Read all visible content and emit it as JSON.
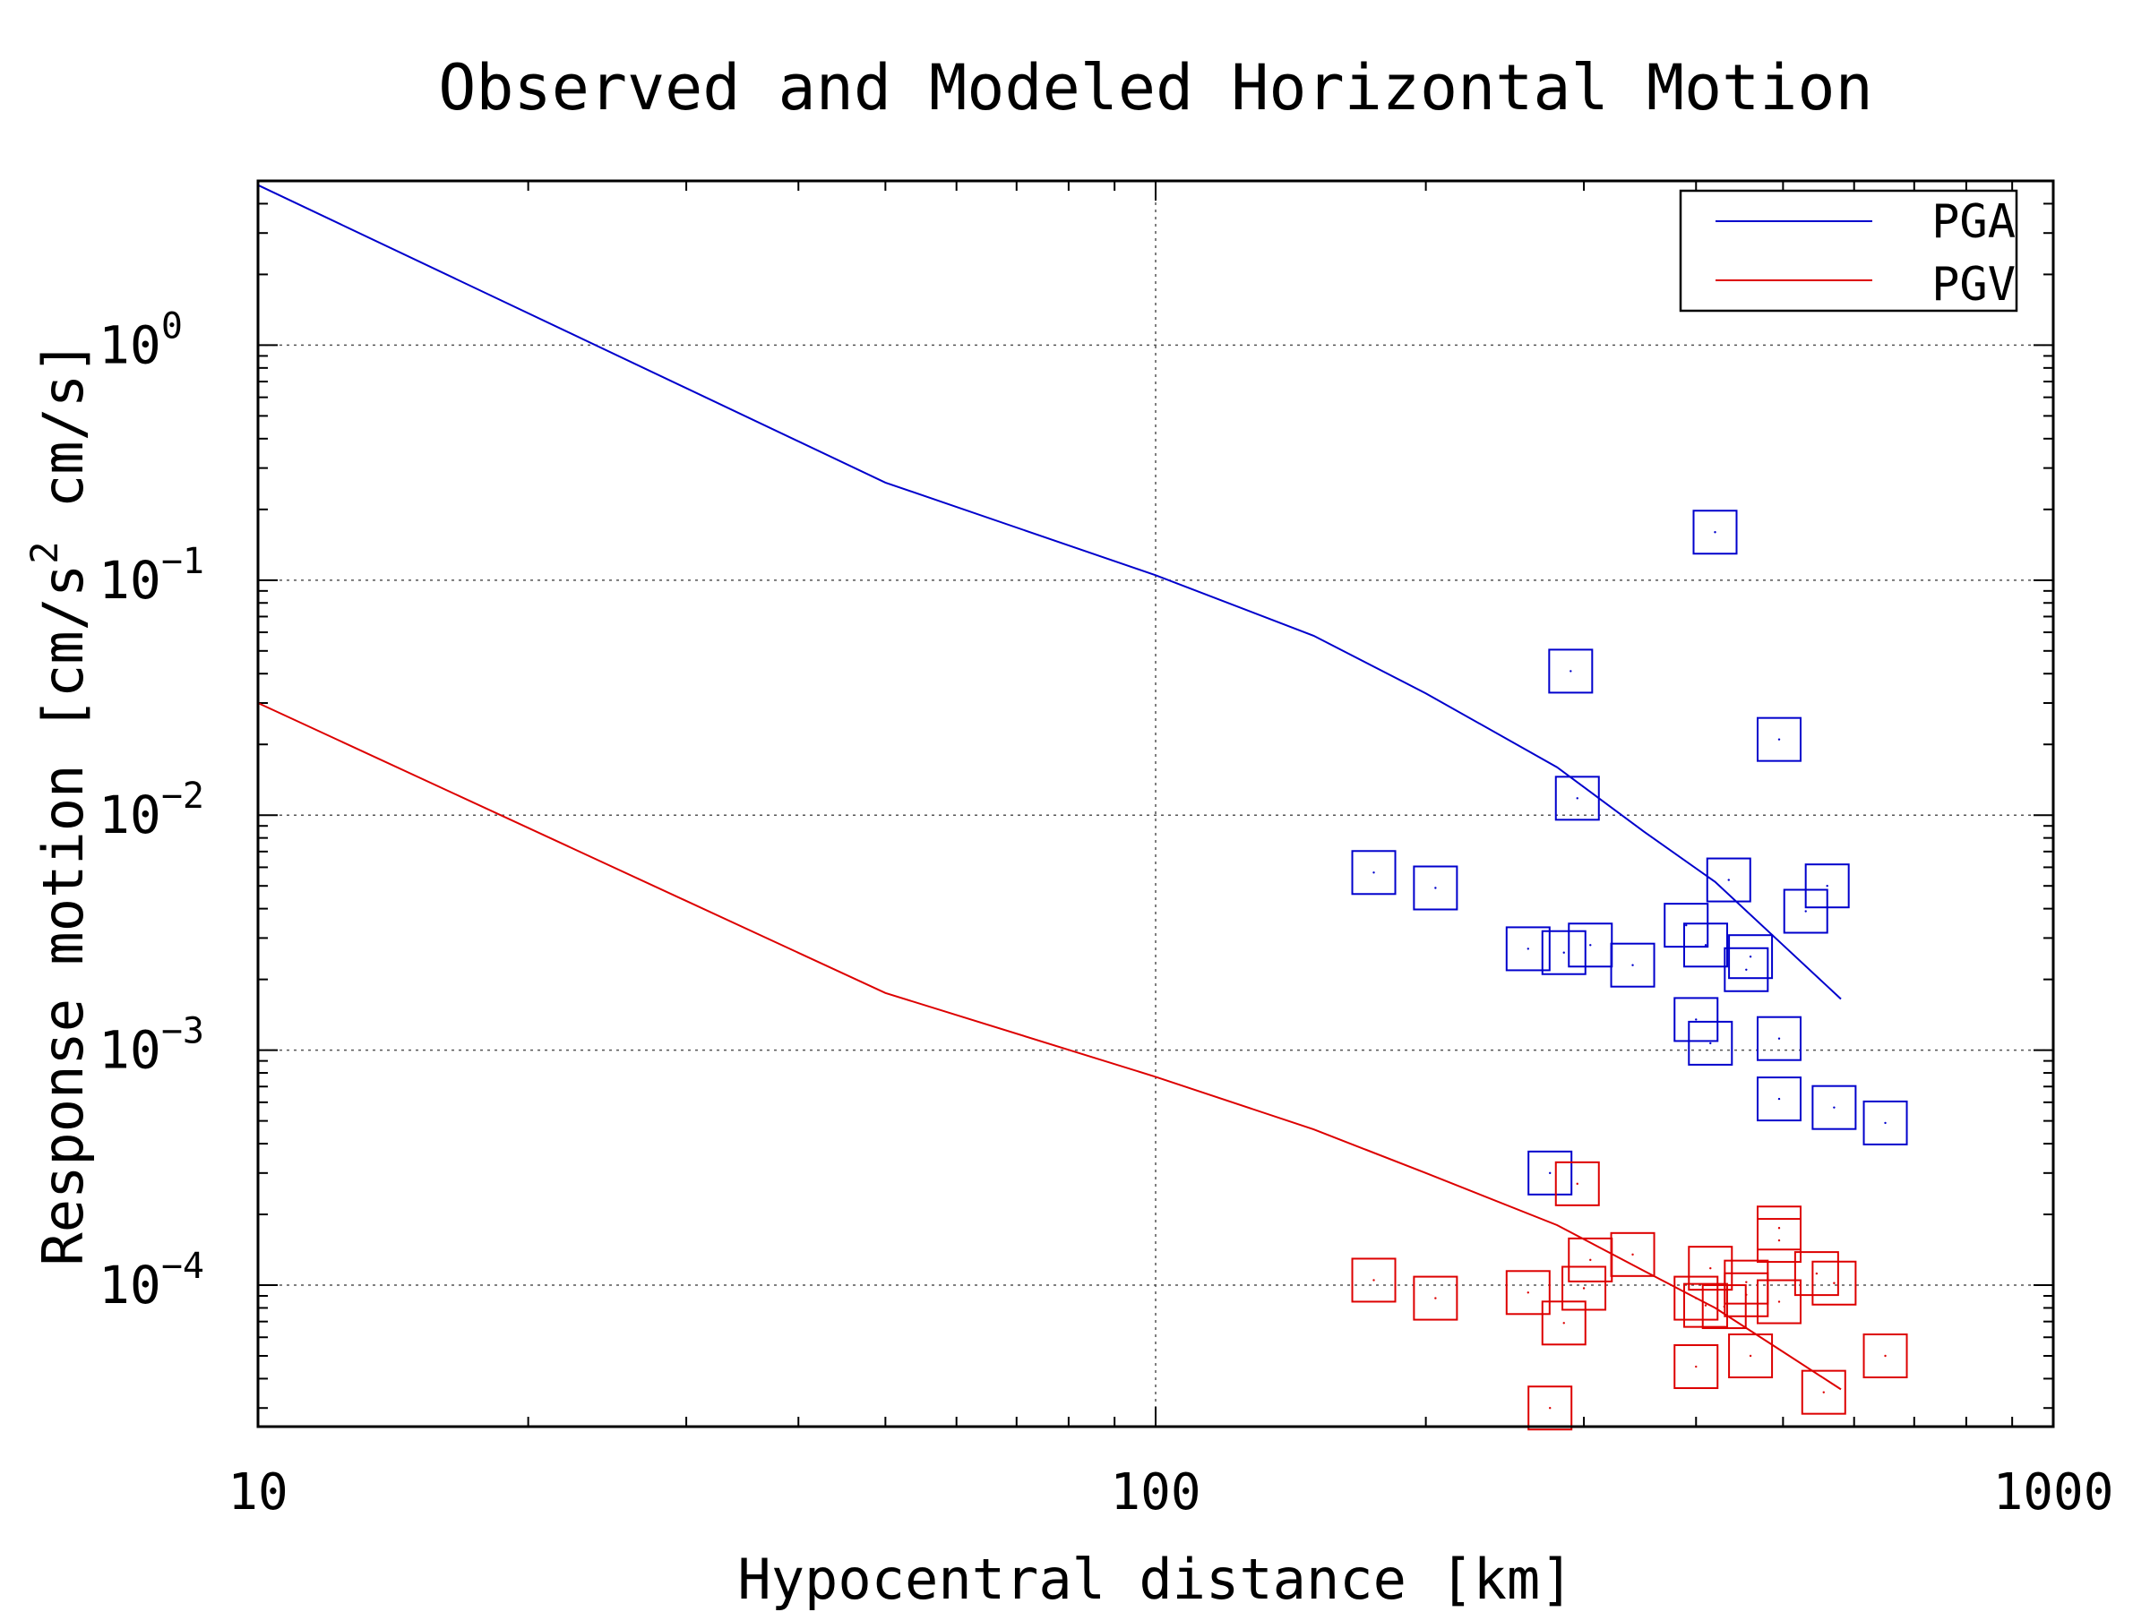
{
  "chart_data": {
    "type": "scatter",
    "title": "Observed and Modeled Horizontal Motion",
    "xlabel": "Hypocentral distance [km]",
    "ylabel": "Response motion [cm/s  cm/s]",
    "x_scale": "log",
    "y_scale": "log",
    "xlim": [
      10,
      1000
    ],
    "ylim": [
      2.5e-05,
      5.0
    ],
    "x_ticks": [
      {
        "value": 10,
        "label": "10"
      },
      {
        "value": 100,
        "label": "100"
      },
      {
        "value": 1000,
        "label": "1000"
      }
    ],
    "y_ticks": [
      {
        "value": 1,
        "base": "10",
        "exp": "0"
      },
      {
        "value": 0.1,
        "base": "10",
        "exp": "−1"
      },
      {
        "value": 0.01,
        "base": "10",
        "exp": "−2"
      },
      {
        "value": 0.001,
        "base": "10",
        "exp": "−3"
      },
      {
        "value": 0.0001,
        "base": "10",
        "exp": "−4"
      }
    ],
    "grid": true,
    "legend_position": "top-right",
    "series": [
      {
        "name": "PGA",
        "color": "#0000cc",
        "model_curve": [
          [
            10,
            4.8
          ],
          [
            50,
            0.26
          ],
          [
            100,
            0.105
          ],
          [
            150,
            0.058
          ],
          [
            200,
            0.033
          ],
          [
            280,
            0.016
          ],
          [
            350,
            0.0085
          ],
          [
            420,
            0.0052
          ],
          [
            500,
            0.0028
          ],
          [
            580,
            0.00165
          ]
        ],
        "observations": [
          [
            420,
            0.16
          ],
          [
            290,
            0.041
          ],
          [
            495,
            0.021
          ],
          [
            295,
            0.0118
          ],
          [
            175,
            0.0057
          ],
          [
            205,
            0.0049
          ],
          [
            435,
            0.0053
          ],
          [
            560,
            0.005
          ],
          [
            530,
            0.0039
          ],
          [
            390,
            0.0034
          ],
          [
            260,
            0.0027
          ],
          [
            285,
            0.0026
          ],
          [
            305,
            0.0028
          ],
          [
            410,
            0.0028
          ],
          [
            460,
            0.0025
          ],
          [
            340,
            0.0023
          ],
          [
            455,
            0.0022
          ],
          [
            400,
            0.00135
          ],
          [
            415,
            0.00107
          ],
          [
            495,
            0.00112
          ],
          [
            495,
            0.00062
          ],
          [
            570,
            0.00057
          ],
          [
            650,
            0.00049
          ],
          [
            275,
            0.0003
          ]
        ]
      },
      {
        "name": "PGV",
        "color": "#dd0000",
        "model_curve": [
          [
            10,
            0.03
          ],
          [
            50,
            0.00175
          ],
          [
            100,
            0.00077
          ],
          [
            150,
            0.00046
          ],
          [
            200,
            0.0003
          ],
          [
            280,
            0.00018
          ],
          [
            350,
            0.000115
          ],
          [
            420,
            8e-05
          ],
          [
            500,
            5.2e-05
          ],
          [
            580,
            3.6e-05
          ]
        ],
        "observations": [
          [
            295,
            0.00027
          ],
          [
            495,
            0.000175
          ],
          [
            495,
            0.000155
          ],
          [
            305,
            0.000128
          ],
          [
            340,
            0.000135
          ],
          [
            415,
            0.000118
          ],
          [
            545,
            0.000112
          ],
          [
            455,
            0.000103
          ],
          [
            570,
            0.000102
          ],
          [
            175,
            0.000105
          ],
          [
            205,
            8.8e-05
          ],
          [
            260,
            9.3e-05
          ],
          [
            300,
            9.7e-05
          ],
          [
            400,
            8.8e-05
          ],
          [
            410,
            8.2e-05
          ],
          [
            430,
            8.1e-05
          ],
          [
            455,
            9.1e-05
          ],
          [
            495,
            8.5e-05
          ],
          [
            285,
            6.9e-05
          ],
          [
            460,
            5e-05
          ],
          [
            400,
            4.5e-05
          ],
          [
            650,
            5e-05
          ],
          [
            555,
            3.5e-05
          ],
          [
            275,
            3e-05
          ]
        ]
      }
    ]
  }
}
